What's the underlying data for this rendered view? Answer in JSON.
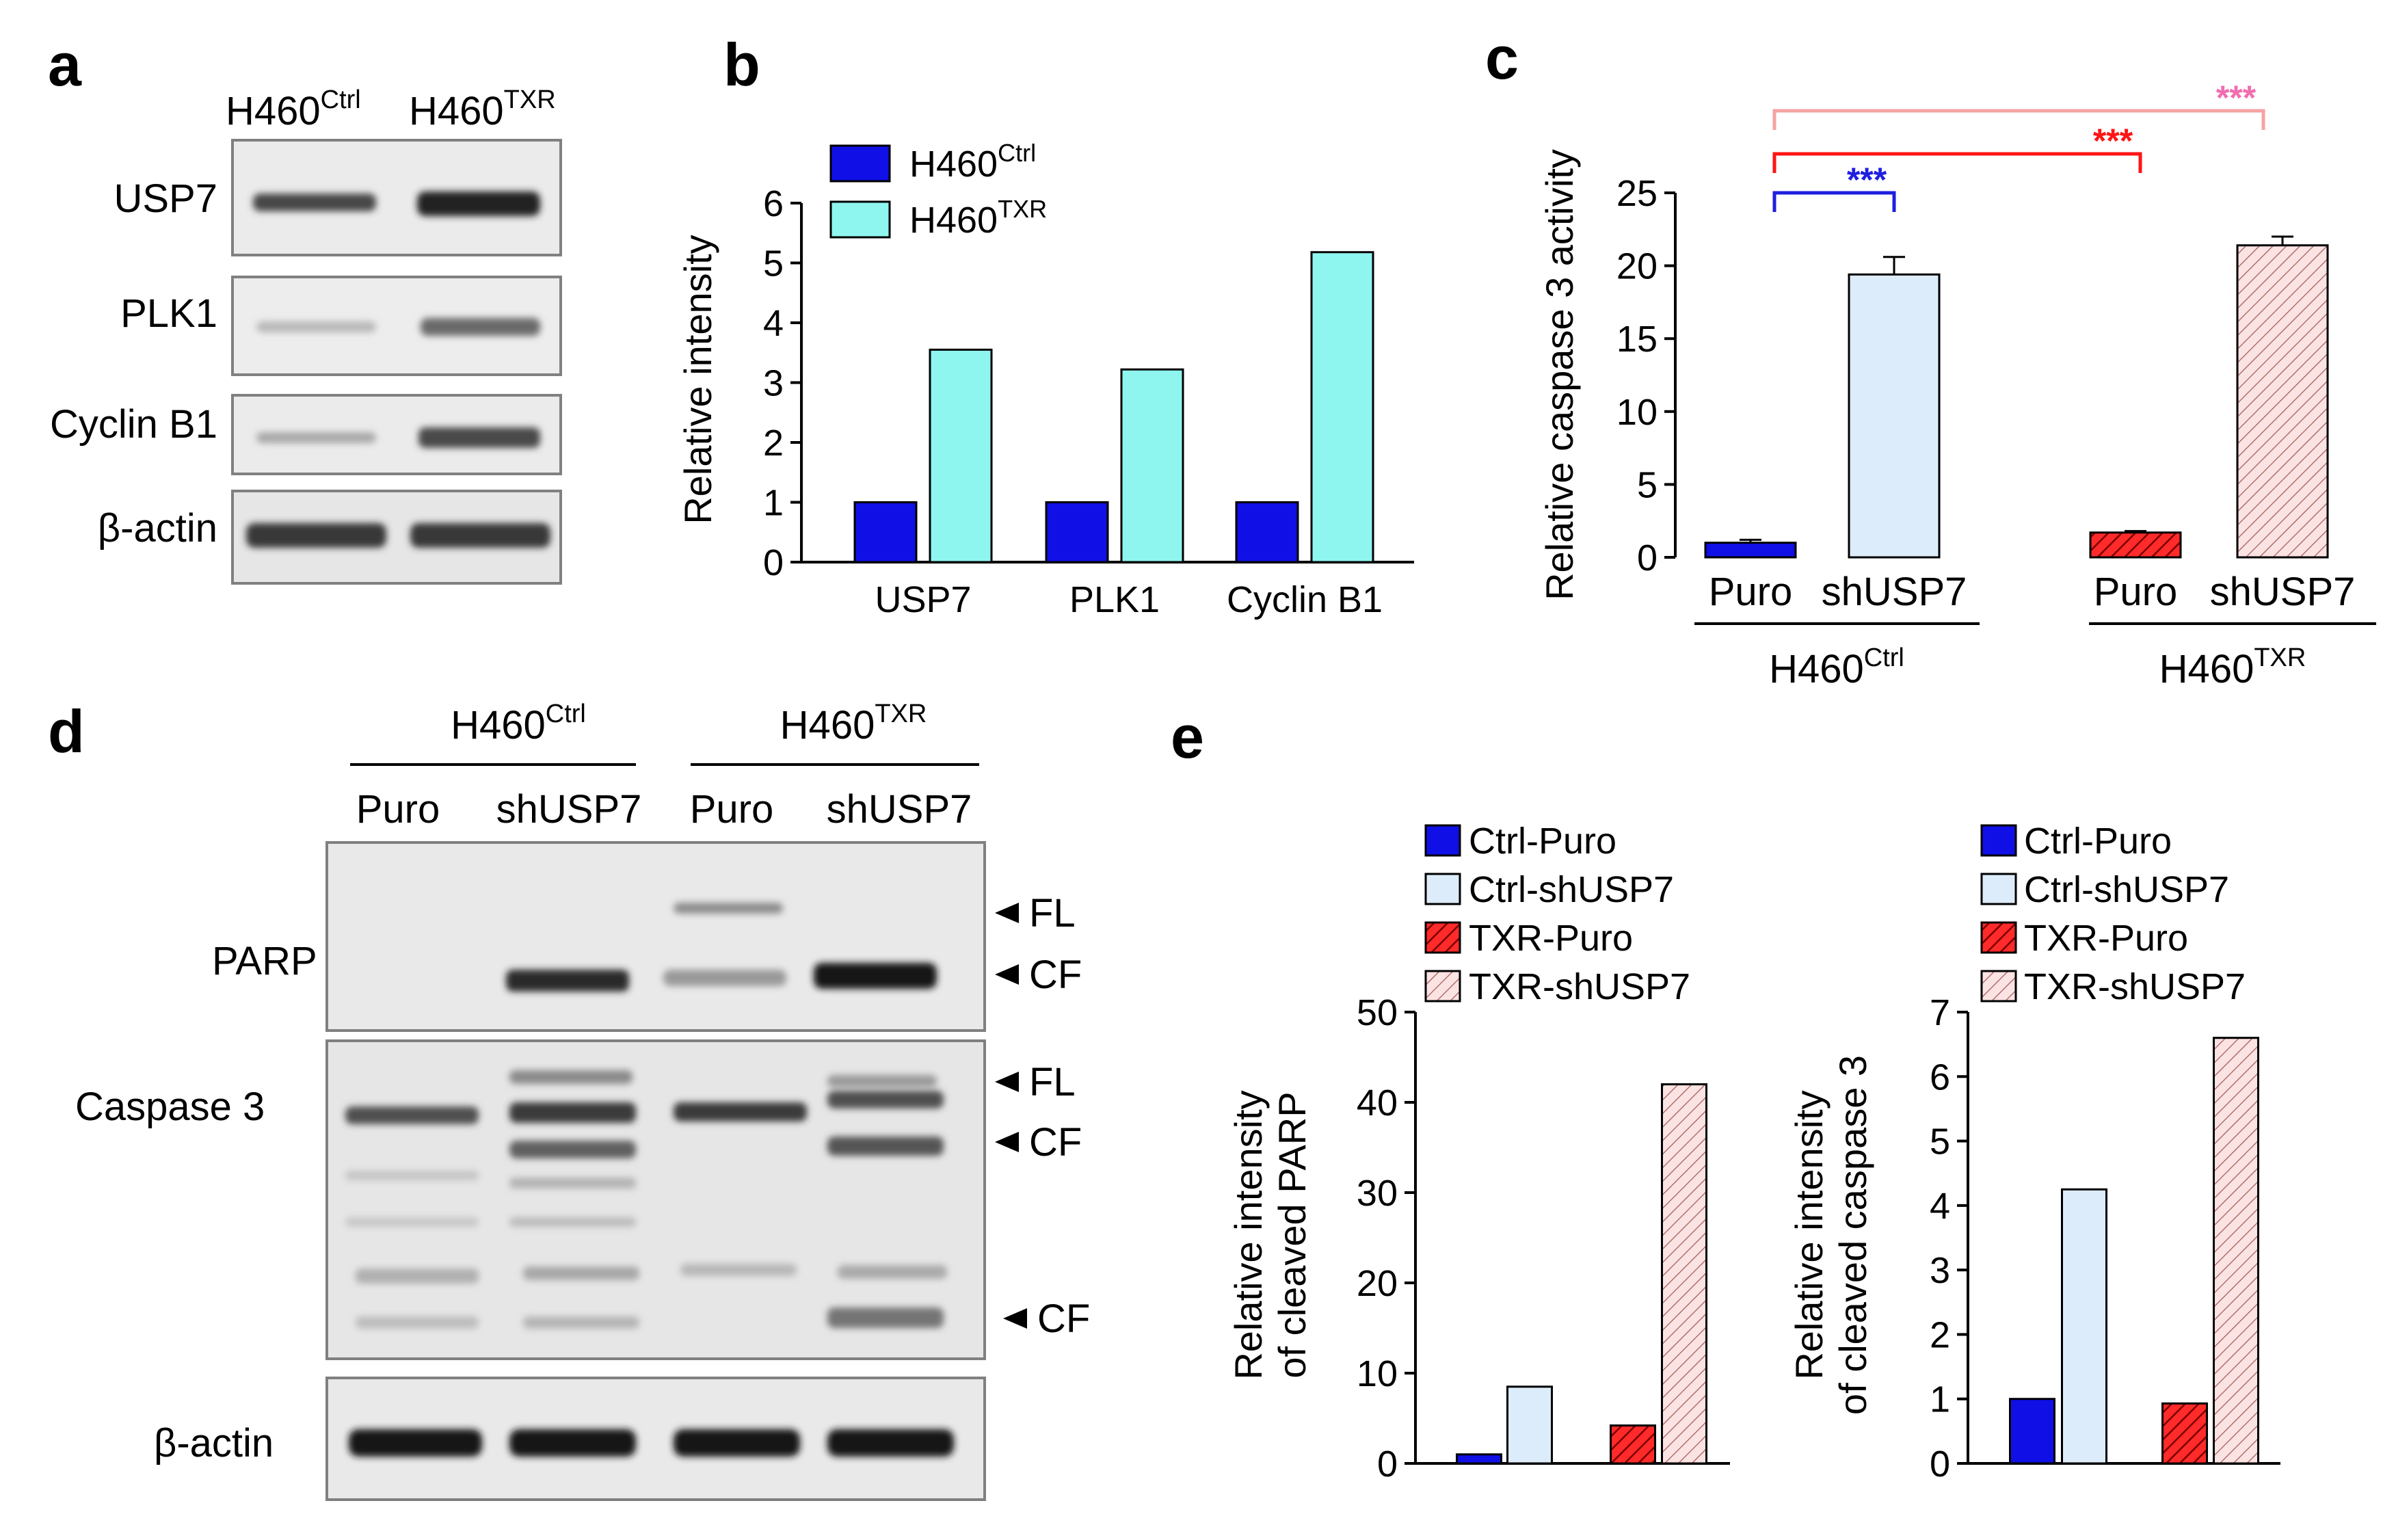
{
  "colors": {
    "ctrl_dark_blue": "#1010e6",
    "ctrl_light_cyan": "#8ff5ef",
    "ctrl_pale_blue": "#dcecfa",
    "txr_red": "#ff0000",
    "txr_pale_pink": "#f9dede",
    "sig_blue": "#1f1fe0",
    "sig_red": "#ff1414",
    "sig_pink": "#f06eb0",
    "sig_salmon": "#f5a3a3",
    "blot_bg": "#e9e9e9"
  },
  "panel_labels": {
    "a": "a",
    "b": "b",
    "c": "c",
    "d": "d",
    "e": "e"
  },
  "blot_a": {
    "lanes": [
      {
        "base": "H460",
        "sup": "Ctrl"
      },
      {
        "base": "H460",
        "sup": "TXR"
      }
    ],
    "rows": [
      "USP7",
      "PLK1",
      "Cyclin B1",
      "β-actin"
    ]
  },
  "blot_d": {
    "groups": [
      {
        "base": "H460",
        "sup": "Ctrl"
      },
      {
        "base": "H460",
        "sup": "TXR"
      }
    ],
    "lanes": [
      "Puro",
      "shUSP7",
      "Puro",
      "shUSP7"
    ],
    "rows": [
      "PARP",
      "Caspase 3",
      "β-actin"
    ],
    "arrows": [
      "FL",
      "CF",
      "FL",
      "CF",
      "CF"
    ]
  },
  "chart_data": [
    {
      "id": "b",
      "type": "bar",
      "categories": [
        "USP7",
        "PLK1",
        "Cyclin B1"
      ],
      "series": [
        {
          "name_base": "H460",
          "name_sup": "Ctrl",
          "values": [
            1.0,
            1.0,
            1.0
          ]
        },
        {
          "name_base": "H460",
          "name_sup": "TXR",
          "values": [
            3.55,
            3.22,
            5.18
          ]
        }
      ],
      "ylabel": "Relative intensity",
      "ylim": [
        0,
        6
      ],
      "yticks": [
        0,
        1,
        2,
        3,
        4,
        5,
        6
      ],
      "legend": "top-left"
    },
    {
      "id": "c",
      "type": "bar",
      "categories": [
        "Puro",
        "shUSP7",
        "Puro",
        "shUSP7"
      ],
      "groups": [
        {
          "base": "H460",
          "sup": "Ctrl"
        },
        {
          "base": "H460",
          "sup": "TXR"
        }
      ],
      "values": [
        1.0,
        19.4,
        1.7,
        21.4
      ],
      "errors": [
        0.2,
        1.2,
        0.1,
        0.6
      ],
      "ylabel": "Relative caspase 3 activity",
      "ylim": [
        0,
        25
      ],
      "yticks": [
        0,
        5,
        10,
        15,
        20,
        25
      ],
      "significance": [
        "***",
        "***",
        "***"
      ]
    },
    {
      "id": "e1",
      "type": "bar",
      "categories": [
        "Ctrl-Puro",
        "Ctrl-shUSP7",
        "TXR-Puro",
        "TXR-shUSP7"
      ],
      "values": [
        1.0,
        8.5,
        4.2,
        42.0
      ],
      "ylabel_lines": [
        "Relative intensity",
        "of cleaved PARP"
      ],
      "ylim": [
        0,
        50
      ],
      "yticks": [
        0,
        10,
        20,
        30,
        40,
        50
      ],
      "legend": "top-left"
    },
    {
      "id": "e2",
      "type": "bar",
      "categories": [
        "Ctrl-Puro",
        "Ctrl-shUSP7",
        "TXR-Puro",
        "TXR-shUSP7"
      ],
      "values": [
        1.0,
        4.25,
        0.93,
        6.6
      ],
      "ylabel_lines": [
        "Relative intensity",
        "of cleaved caspase 3"
      ],
      "ylim": [
        0,
        7
      ],
      "yticks": [
        0,
        1,
        2,
        3,
        4,
        5,
        6,
        7
      ],
      "legend": "top-left"
    }
  ]
}
